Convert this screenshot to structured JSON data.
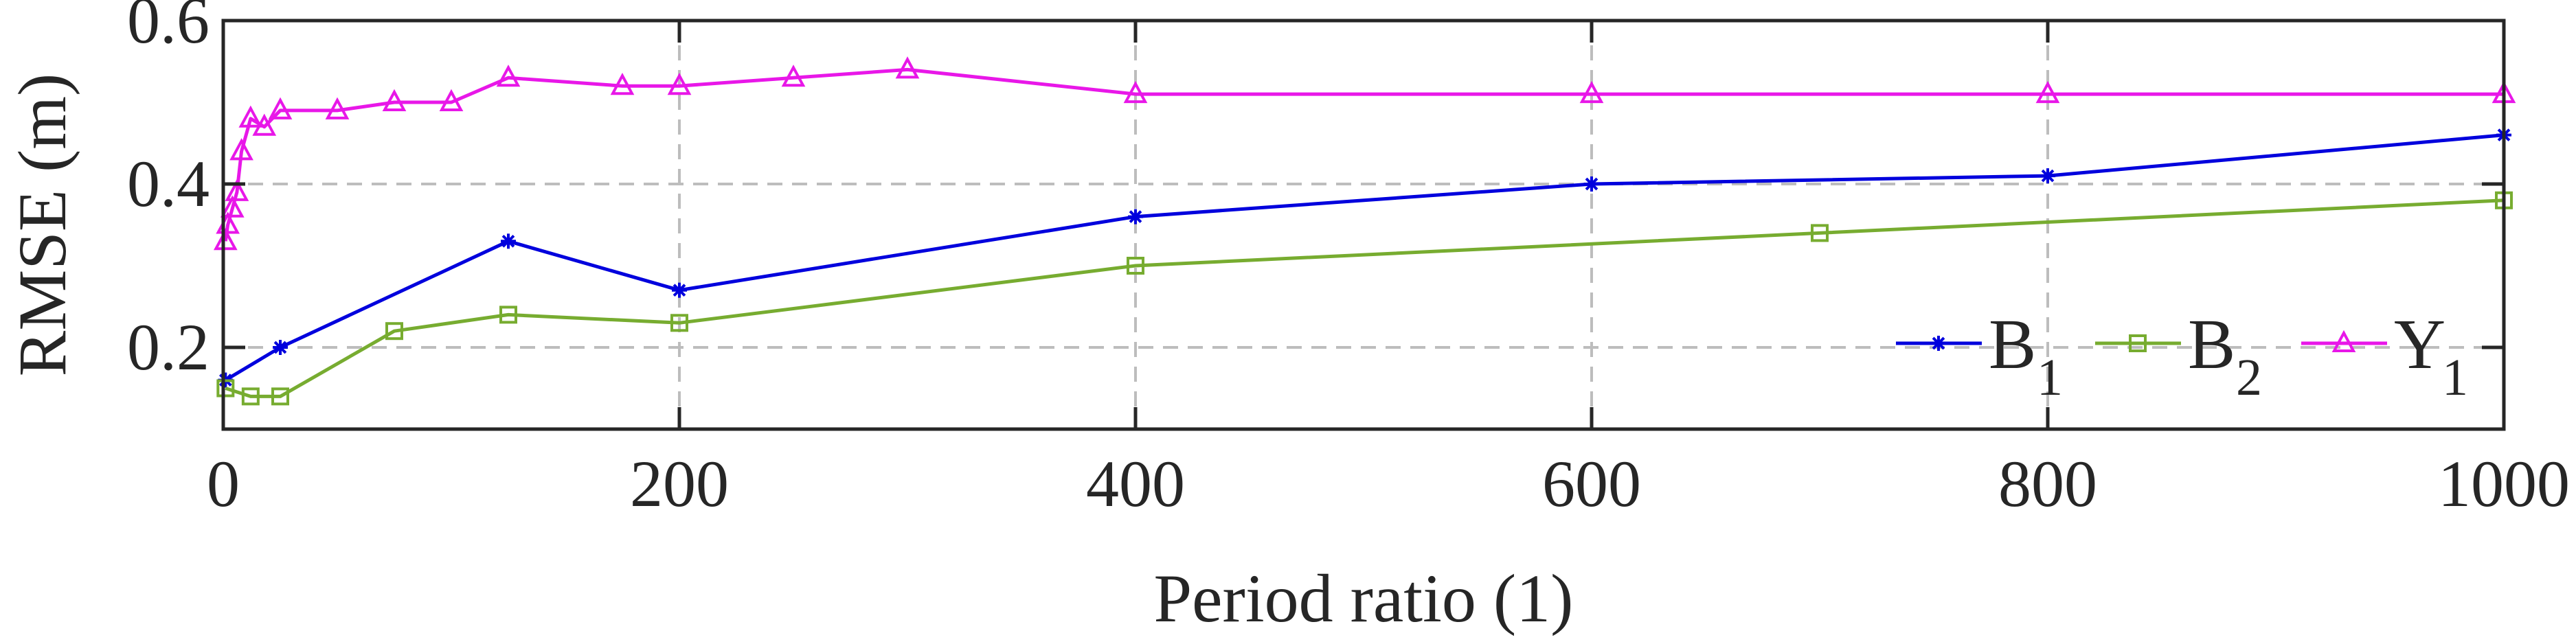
{
  "chart_data": {
    "type": "line",
    "title": "",
    "xlabel": "Period ratio (1)",
    "ylabel": "RMSE (m)",
    "xlim": [
      0,
      1000
    ],
    "ylim": [
      0.1,
      0.6
    ],
    "xticks": [
      0,
      200,
      400,
      600,
      800,
      1000
    ],
    "yticks": [
      0.2,
      0.4,
      0.6
    ],
    "xtick_labels": [
      "0",
      "200",
      "400",
      "600",
      "800",
      "1000"
    ],
    "ytick_labels": [
      "0.2",
      "0.4",
      "0.6"
    ],
    "grid": true,
    "legend_position": "bottom-right",
    "series": [
      {
        "name": "B1",
        "label_main": "B",
        "label_sub": "1",
        "color": "#0000dd",
        "marker": "asterisk",
        "x": [
          1,
          25,
          125,
          200,
          400,
          600,
          800,
          1000
        ],
        "y": [
          0.16,
          0.2,
          0.33,
          0.27,
          0.36,
          0.4,
          0.41,
          0.46
        ]
      },
      {
        "name": "B2",
        "label_main": "B",
        "label_sub": "2",
        "color": "#77ac30",
        "marker": "square",
        "x": [
          1,
          12,
          25,
          75,
          125,
          200,
          400,
          700,
          1000
        ],
        "y": [
          0.15,
          0.14,
          0.14,
          0.22,
          0.24,
          0.23,
          0.3,
          0.34,
          0.38
        ]
      },
      {
        "name": "Y1",
        "label_main": "Y",
        "label_sub": "1",
        "color": "#e817e8",
        "marker": "triangle",
        "x": [
          1,
          2,
          4,
          6,
          8,
          12,
          18,
          25,
          50,
          75,
          100,
          125,
          175,
          200,
          250,
          300,
          400,
          600,
          800,
          1000
        ],
        "y": [
          0.33,
          0.35,
          0.37,
          0.39,
          0.44,
          0.48,
          0.47,
          0.49,
          0.49,
          0.5,
          0.5,
          0.53,
          0.52,
          0.52,
          0.53,
          0.54,
          0.51,
          0.51,
          0.51,
          0.51
        ]
      }
    ]
  }
}
